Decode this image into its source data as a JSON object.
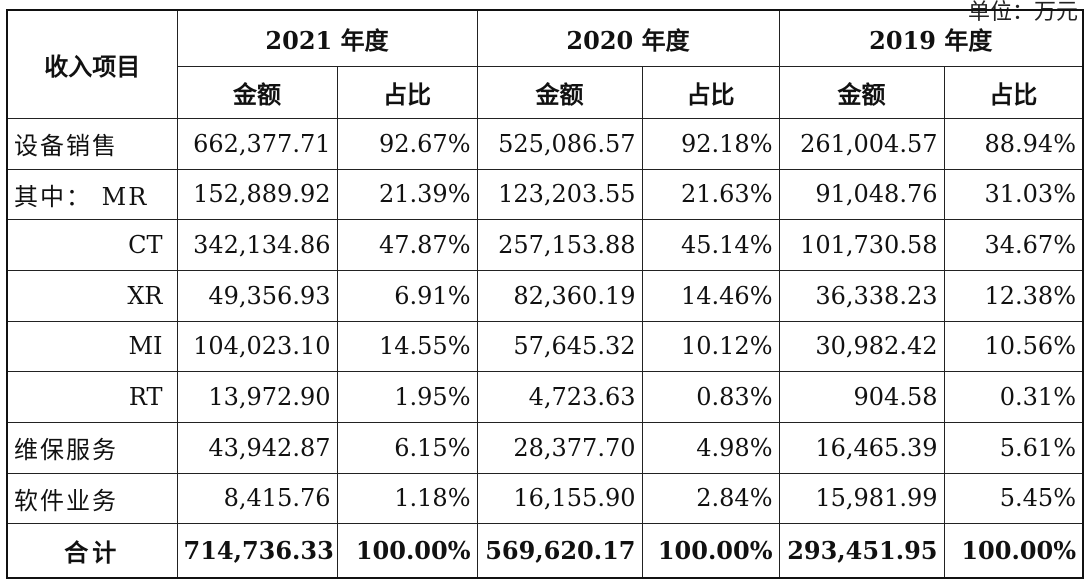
{
  "unit_note": "单位：万元",
  "header": {
    "item_label": "收入项目",
    "years": [
      "2021 年度",
      "2020 年度",
      "2019 年度"
    ],
    "amount_label": "金额",
    "ratio_label": "占比"
  },
  "rows": [
    {
      "label": "设备销售",
      "indent": false,
      "vals": [
        "662,377.71",
        "92.67%",
        "525,086.57",
        "92.18%",
        "261,004.57",
        "88.94%"
      ]
    },
    {
      "label": "其中： MR",
      "indent": false,
      "vals": [
        "152,889.92",
        "21.39%",
        "123,203.55",
        "21.63%",
        "91,048.76",
        "31.03%"
      ]
    },
    {
      "label": "CT",
      "indent": true,
      "vals": [
        "342,134.86",
        "47.87%",
        "257,153.88",
        "45.14%",
        "101,730.58",
        "34.67%"
      ]
    },
    {
      "label": "XR",
      "indent": true,
      "vals": [
        "49,356.93",
        "6.91%",
        "82,360.19",
        "14.46%",
        "36,338.23",
        "12.38%"
      ]
    },
    {
      "label": "MI",
      "indent": true,
      "vals": [
        "104,023.10",
        "14.55%",
        "57,645.32",
        "10.12%",
        "30,982.42",
        "10.56%"
      ]
    },
    {
      "label": "RT",
      "indent": true,
      "vals": [
        "13,972.90",
        "1.95%",
        "4,723.63",
        "0.83%",
        "904.58",
        "0.31%"
      ]
    },
    {
      "label": "维保服务",
      "indent": false,
      "vals": [
        "43,942.87",
        "6.15%",
        "28,377.70",
        "4.98%",
        "16,465.39",
        "5.61%"
      ]
    },
    {
      "label": "软件业务",
      "indent": false,
      "vals": [
        "8,415.76",
        "1.18%",
        "16,155.90",
        "2.84%",
        "15,981.99",
        "5.45%"
      ]
    }
  ],
  "total": {
    "label": "合计",
    "vals": [
      "714,736.33",
      "100.00%",
      "569,620.17",
      "100.00%",
      "293,451.95",
      "100.00%"
    ]
  }
}
